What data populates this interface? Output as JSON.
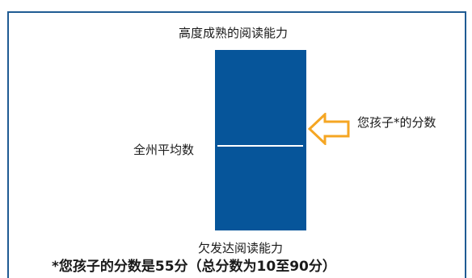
{
  "diagram": {
    "top_label": "高度成熟的阅读能力",
    "bottom_label": "欠发达阅读能力",
    "average_label": "全州平均数",
    "child_label": "您孩子*的分数",
    "footnote": "*您孩子的分数是55分（总分数为10至90分）",
    "scale_min": 10,
    "scale_max": 90,
    "child_score": 55,
    "state_average": 48,
    "colors": {
      "bar": "#06559a",
      "frame": "#1f5b93",
      "arrow": "#f5a623",
      "average_line": "#ffffff"
    }
  }
}
